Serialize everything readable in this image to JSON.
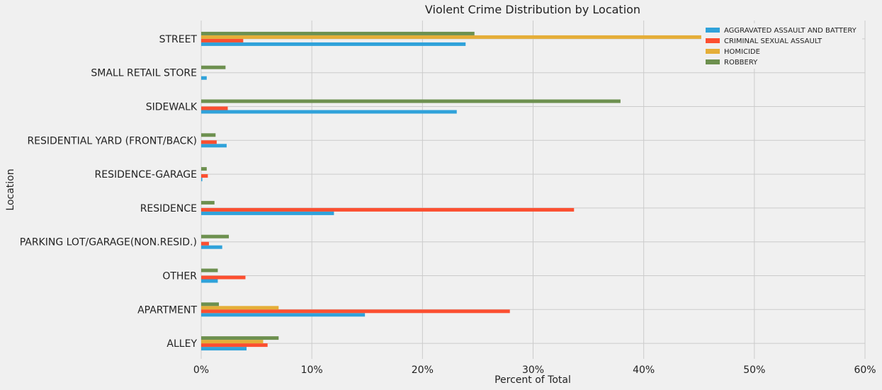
{
  "chart_data": {
    "type": "bar",
    "orientation": "horizontal",
    "title": "Violent Crime Distribution by Location",
    "xlabel": "Percent of Total",
    "ylabel": "Location",
    "xlim": [
      0,
      60
    ],
    "xticks": [
      0,
      10,
      20,
      30,
      40,
      50,
      60
    ],
    "xtick_labels": [
      "0%",
      "10%",
      "20%",
      "30%",
      "40%",
      "50%",
      "60%"
    ],
    "grid": true,
    "legend_position": "top-right",
    "categories": [
      "ALLEY",
      "APARTMENT",
      "OTHER",
      "PARKING LOT/GARAGE(NON.RESID.)",
      "RESIDENCE",
      "RESIDENCE-GARAGE",
      "RESIDENTIAL YARD (FRONT/BACK)",
      "SIDEWALK",
      "SMALL RETAIL STORE",
      "STREET"
    ],
    "series": [
      {
        "name": "AGGRAVATED ASSAULT AND BATTERY",
        "color": "#30a2da",
        "values": [
          4.1,
          14.8,
          1.5,
          1.9,
          12.0,
          0.1,
          2.3,
          23.1,
          0.5,
          23.9
        ]
      },
      {
        "name": "CRIMINAL SEXUAL ASSAULT",
        "color": "#fc4f30",
        "values": [
          6.0,
          27.9,
          4.0,
          0.7,
          33.7,
          0.6,
          1.4,
          2.4,
          0.0,
          3.8
        ]
      },
      {
        "name": "HOMICIDE",
        "color": "#e5ae38",
        "values": [
          5.6,
          7.0,
          0.0,
          0.0,
          0.0,
          0.0,
          0.0,
          0.0,
          0.0,
          45.2
        ]
      },
      {
        "name": "ROBBERY",
        "color": "#6d904f",
        "values": [
          7.0,
          1.6,
          1.5,
          2.5,
          1.2,
          0.5,
          1.3,
          37.9,
          2.2,
          24.7
        ]
      }
    ]
  }
}
